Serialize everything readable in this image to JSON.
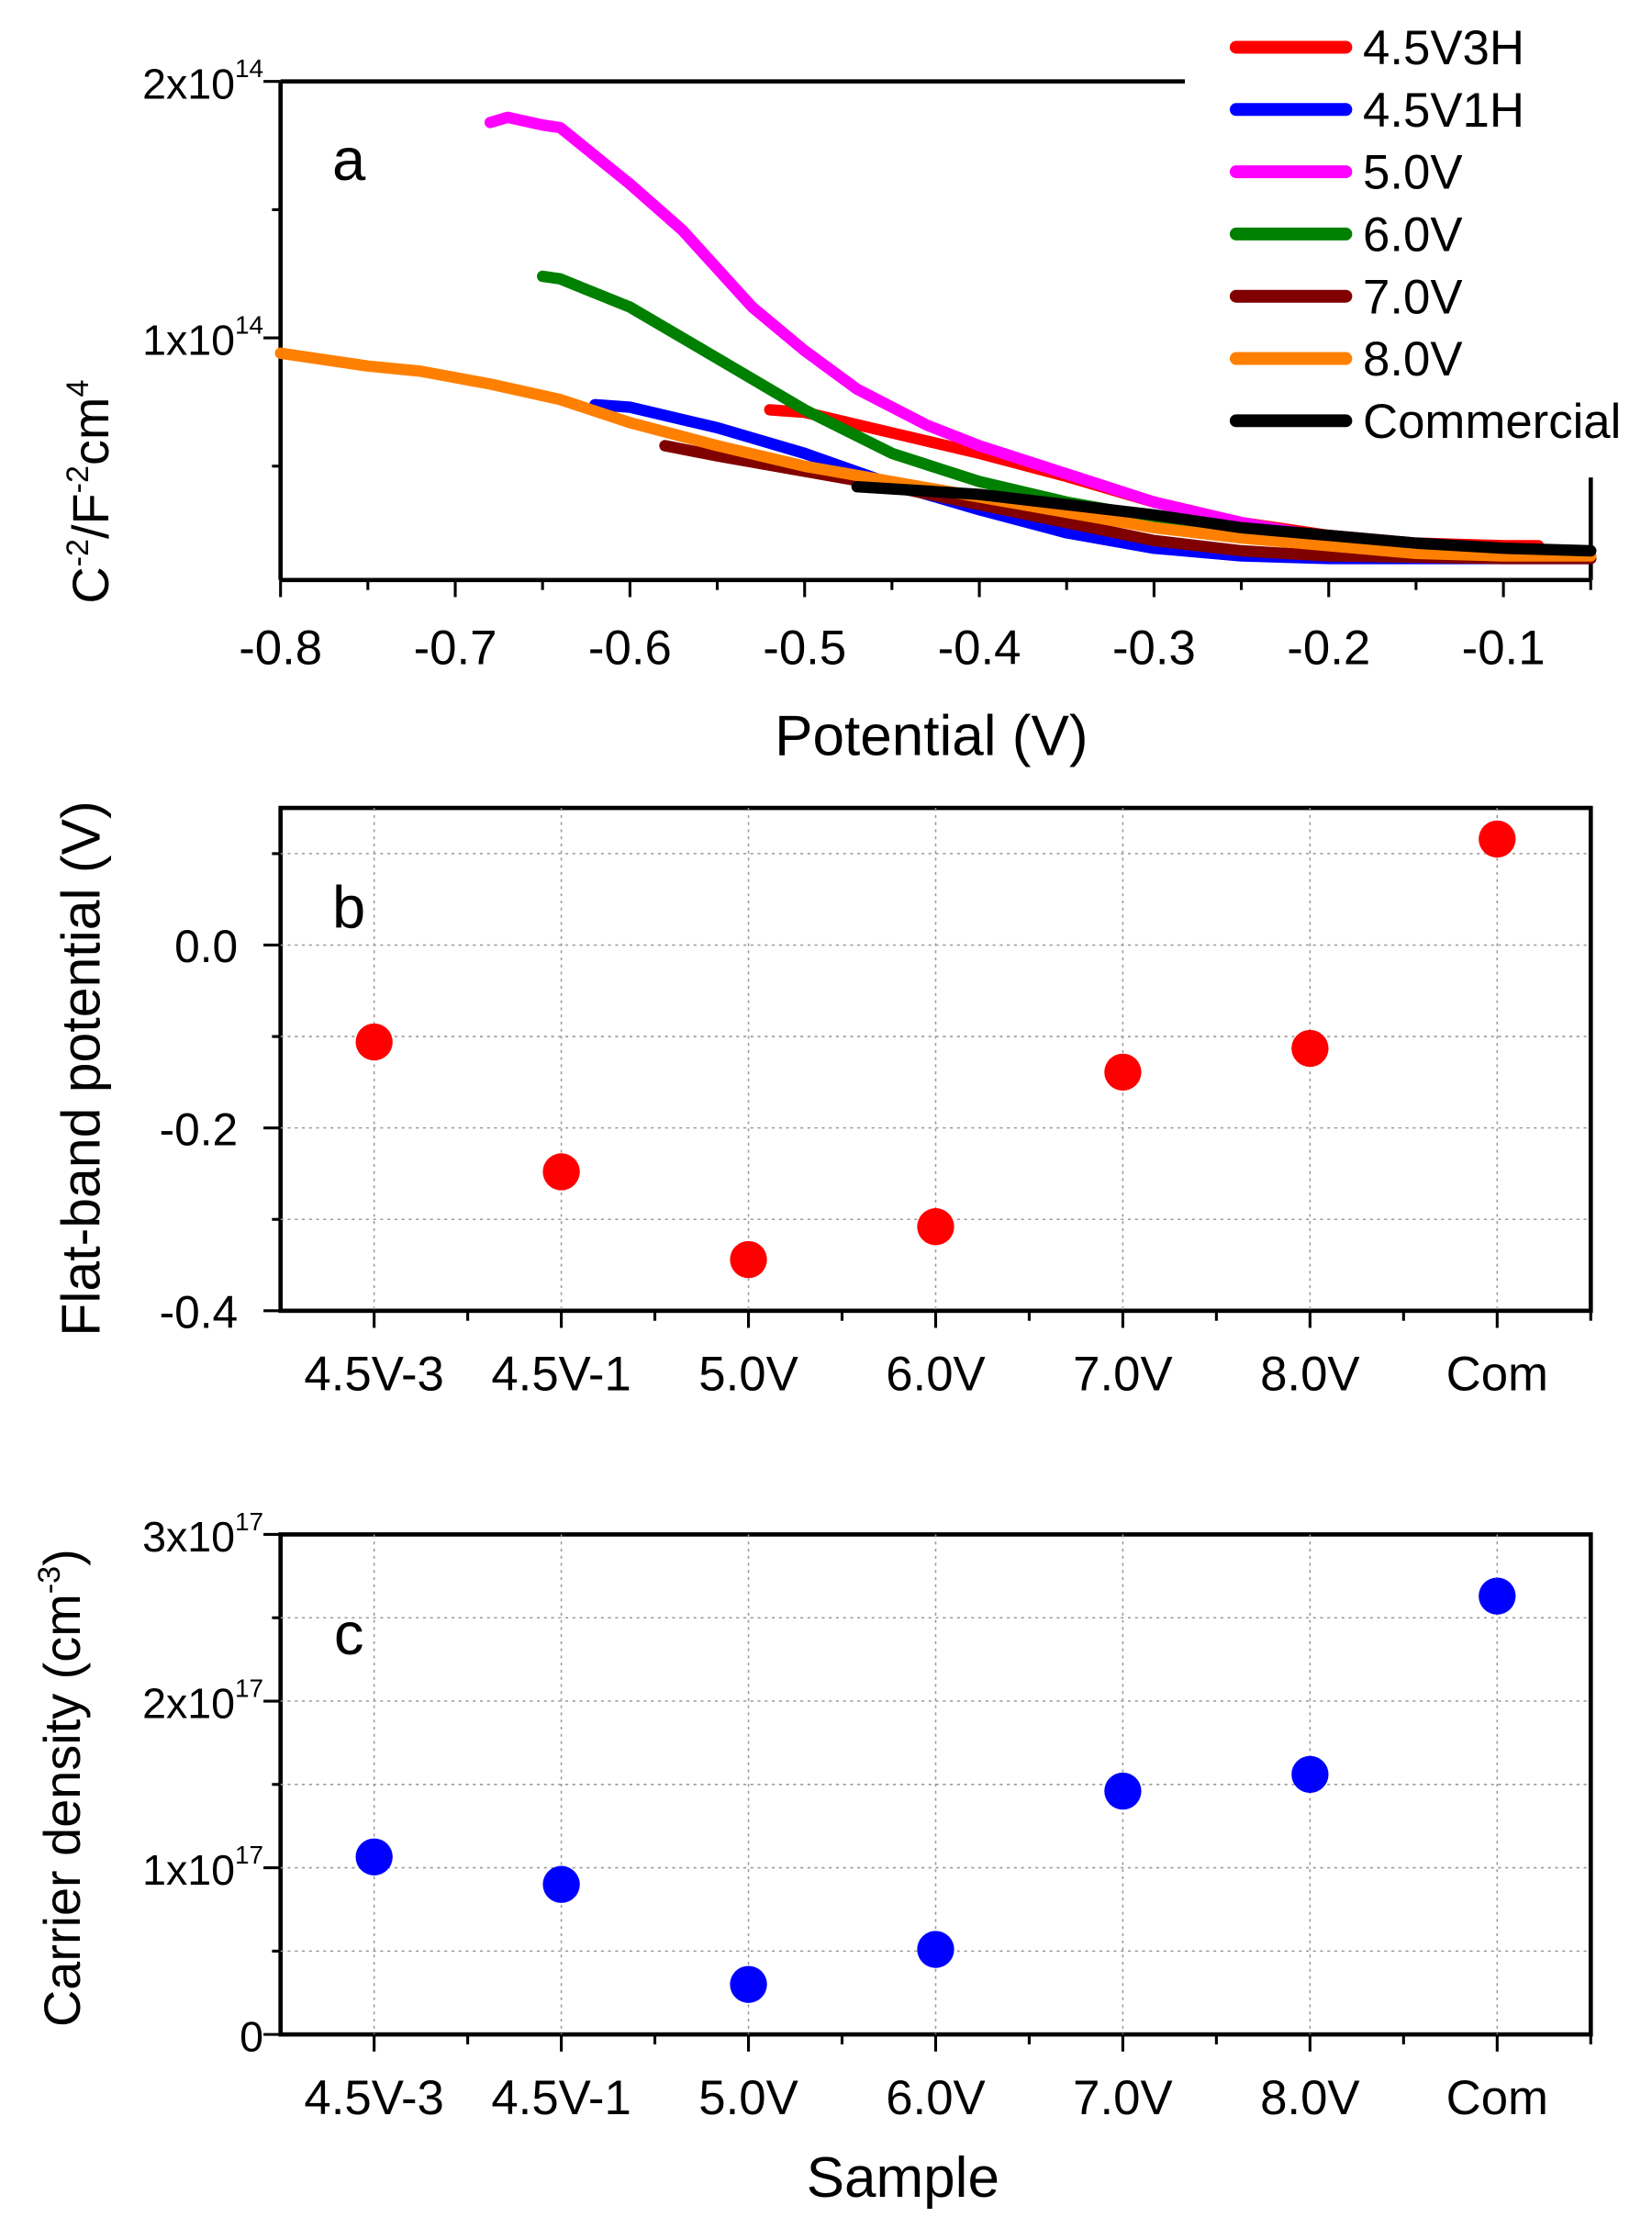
{
  "chart_data": [
    {
      "type": "line",
      "panel_label": "a",
      "xlabel": "Potential (V)",
      "ylabel": {
        "base1": "C",
        "sup1": "-2",
        "base2": "/F",
        "sup2": "-2",
        "base3": "cm",
        "sup3": "4"
      },
      "xlim": [
        -0.8,
        -0.05
      ],
      "ylim_units_1e14": [
        0.056,
        2.0
      ],
      "xticks": [
        "-0.8",
        "-0.7",
        "-0.6",
        "-0.5",
        "-0.4",
        "-0.3",
        "-0.2",
        "-0.1"
      ],
      "xtick_values": [
        -0.8,
        -0.7,
        -0.6,
        -0.5,
        -0.4,
        -0.3,
        -0.2,
        -0.1
      ],
      "yticks": [
        {
          "value": 1,
          "mantissa": "1x10",
          "exp": "14"
        },
        {
          "value": 2,
          "mantissa": "2x10",
          "exp": "14"
        }
      ],
      "legend_position": "top-right",
      "series": [
        {
          "name": "4.5V3H",
          "color": "#ff0000",
          "points": [
            [
              -0.52,
              0.72
            ],
            [
              -0.5,
              0.71
            ],
            [
              -0.45,
              0.63
            ],
            [
              -0.4,
              0.55
            ],
            [
              -0.35,
              0.46
            ],
            [
              -0.3,
              0.36
            ],
            [
              -0.25,
              0.28
            ],
            [
              -0.2,
              0.23
            ],
            [
              -0.15,
              0.2
            ],
            [
              -0.1,
              0.19
            ],
            [
              -0.08,
              0.19
            ]
          ]
        },
        {
          "name": "4.5V1H",
          "color": "#0000ff",
          "points": [
            [
              -0.62,
              0.74
            ],
            [
              -0.6,
              0.73
            ],
            [
              -0.55,
              0.65
            ],
            [
              -0.5,
              0.55
            ],
            [
              -0.45,
              0.43
            ],
            [
              -0.4,
              0.33
            ],
            [
              -0.35,
              0.24
            ],
            [
              -0.3,
              0.18
            ],
            [
              -0.25,
              0.15
            ],
            [
              -0.2,
              0.14
            ],
            [
              -0.1,
              0.14
            ],
            [
              -0.05,
              0.14
            ]
          ]
        },
        {
          "name": "5.0V",
          "color": "#ff00ff",
          "points": [
            [
              -0.68,
              1.84
            ],
            [
              -0.67,
              1.86
            ],
            [
              -0.65,
              1.83
            ],
            [
              -0.64,
              1.82
            ],
            [
              -0.6,
              1.6
            ],
            [
              -0.57,
              1.42
            ],
            [
              -0.53,
              1.12
            ],
            [
              -0.5,
              0.95
            ],
            [
              -0.47,
              0.8
            ],
            [
              -0.43,
              0.66
            ],
            [
              -0.4,
              0.58
            ],
            [
              -0.35,
              0.47
            ],
            [
              -0.3,
              0.36
            ],
            [
              -0.25,
              0.28
            ],
            [
              -0.2,
              0.22
            ],
            [
              -0.15,
              0.19
            ],
            [
              -0.1,
              0.17
            ],
            [
              -0.08,
              0.17
            ]
          ]
        },
        {
          "name": "6.0V",
          "color": "#008000",
          "points": [
            [
              -0.65,
              1.24
            ],
            [
              -0.64,
              1.23
            ],
            [
              -0.6,
              1.12
            ],
            [
              -0.55,
              0.92
            ],
            [
              -0.5,
              0.72
            ],
            [
              -0.45,
              0.55
            ],
            [
              -0.4,
              0.44
            ],
            [
              -0.35,
              0.36
            ],
            [
              -0.3,
              0.3
            ],
            [
              -0.25,
              0.25
            ],
            [
              -0.2,
              0.21
            ],
            [
              -0.15,
              0.18
            ],
            [
              -0.1,
              0.17
            ],
            [
              -0.06,
              0.16
            ]
          ]
        },
        {
          "name": "7.0V",
          "color": "#800000",
          "points": [
            [
              -0.58,
              0.58
            ],
            [
              -0.55,
              0.54
            ],
            [
              -0.5,
              0.48
            ],
            [
              -0.45,
              0.42
            ],
            [
              -0.4,
              0.35
            ],
            [
              -0.35,
              0.28
            ],
            [
              -0.3,
              0.21
            ],
            [
              -0.25,
              0.17
            ],
            [
              -0.2,
              0.15
            ],
            [
              -0.1,
              0.14
            ],
            [
              -0.05,
              0.14
            ]
          ]
        },
        {
          "name": "8.0V",
          "color": "#ff8000",
          "points": [
            [
              -0.8,
              0.94
            ],
            [
              -0.75,
              0.89
            ],
            [
              -0.72,
              0.87
            ],
            [
              -0.68,
              0.82
            ],
            [
              -0.64,
              0.76
            ],
            [
              -0.6,
              0.67
            ],
            [
              -0.55,
              0.58
            ],
            [
              -0.5,
              0.5
            ],
            [
              -0.45,
              0.44
            ],
            [
              -0.4,
              0.38
            ],
            [
              -0.35,
              0.32
            ],
            [
              -0.3,
              0.26
            ],
            [
              -0.25,
              0.22
            ],
            [
              -0.2,
              0.19
            ],
            [
              -0.15,
              0.16
            ],
            [
              -0.1,
              0.15
            ],
            [
              -0.05,
              0.15
            ]
          ]
        },
        {
          "name": "Commercial",
          "color": "#000000",
          "points": [
            [
              -0.47,
              0.42
            ],
            [
              -0.4,
              0.39
            ],
            [
              -0.35,
              0.35
            ],
            [
              -0.3,
              0.31
            ],
            [
              -0.25,
              0.26
            ],
            [
              -0.2,
              0.23
            ],
            [
              -0.15,
              0.2
            ],
            [
              -0.1,
              0.18
            ],
            [
              -0.05,
              0.17
            ]
          ]
        }
      ]
    },
    {
      "type": "scatter",
      "panel_label": "b",
      "ylabel": "Flat-band potential (V)",
      "categories": [
        "4.5V-3",
        "4.5V-1",
        "5.0V",
        "6.0V",
        "7.0V",
        "8.0V",
        "Com"
      ],
      "values": [
        -0.106,
        -0.248,
        -0.344,
        -0.308,
        -0.139,
        -0.113,
        0.116
      ],
      "ylim": [
        -0.4,
        0.15
      ],
      "yticks": [
        "0.0",
        "-0.2",
        "-0.4"
      ],
      "ytick_values": [
        0.0,
        -0.2,
        -0.4
      ],
      "grid": true,
      "color": "#ff0000"
    },
    {
      "type": "scatter",
      "panel_label": "c",
      "xlabel": "Sample",
      "ylabel": {
        "base": "Carrier density (cm",
        "sup": "-3",
        "end": ")"
      },
      "categories": [
        "4.5V-3",
        "4.5V-1",
        "5.0V",
        "6.0V",
        "7.0V",
        "8.0V",
        "Com"
      ],
      "values_units_1e17": [
        1.065,
        0.9,
        0.3,
        0.51,
        1.46,
        1.56,
        2.63
      ],
      "ylim_units_1e17": [
        0,
        3
      ],
      "yticks": [
        {
          "value": 0,
          "mantissa": "0",
          "exp": ""
        },
        {
          "value": 1,
          "mantissa": "1x10",
          "exp": "17"
        },
        {
          "value": 2,
          "mantissa": "2x10",
          "exp": "17"
        },
        {
          "value": 3,
          "mantissa": "3x10",
          "exp": "17"
        }
      ],
      "grid": true,
      "color": "#0000ff"
    }
  ]
}
